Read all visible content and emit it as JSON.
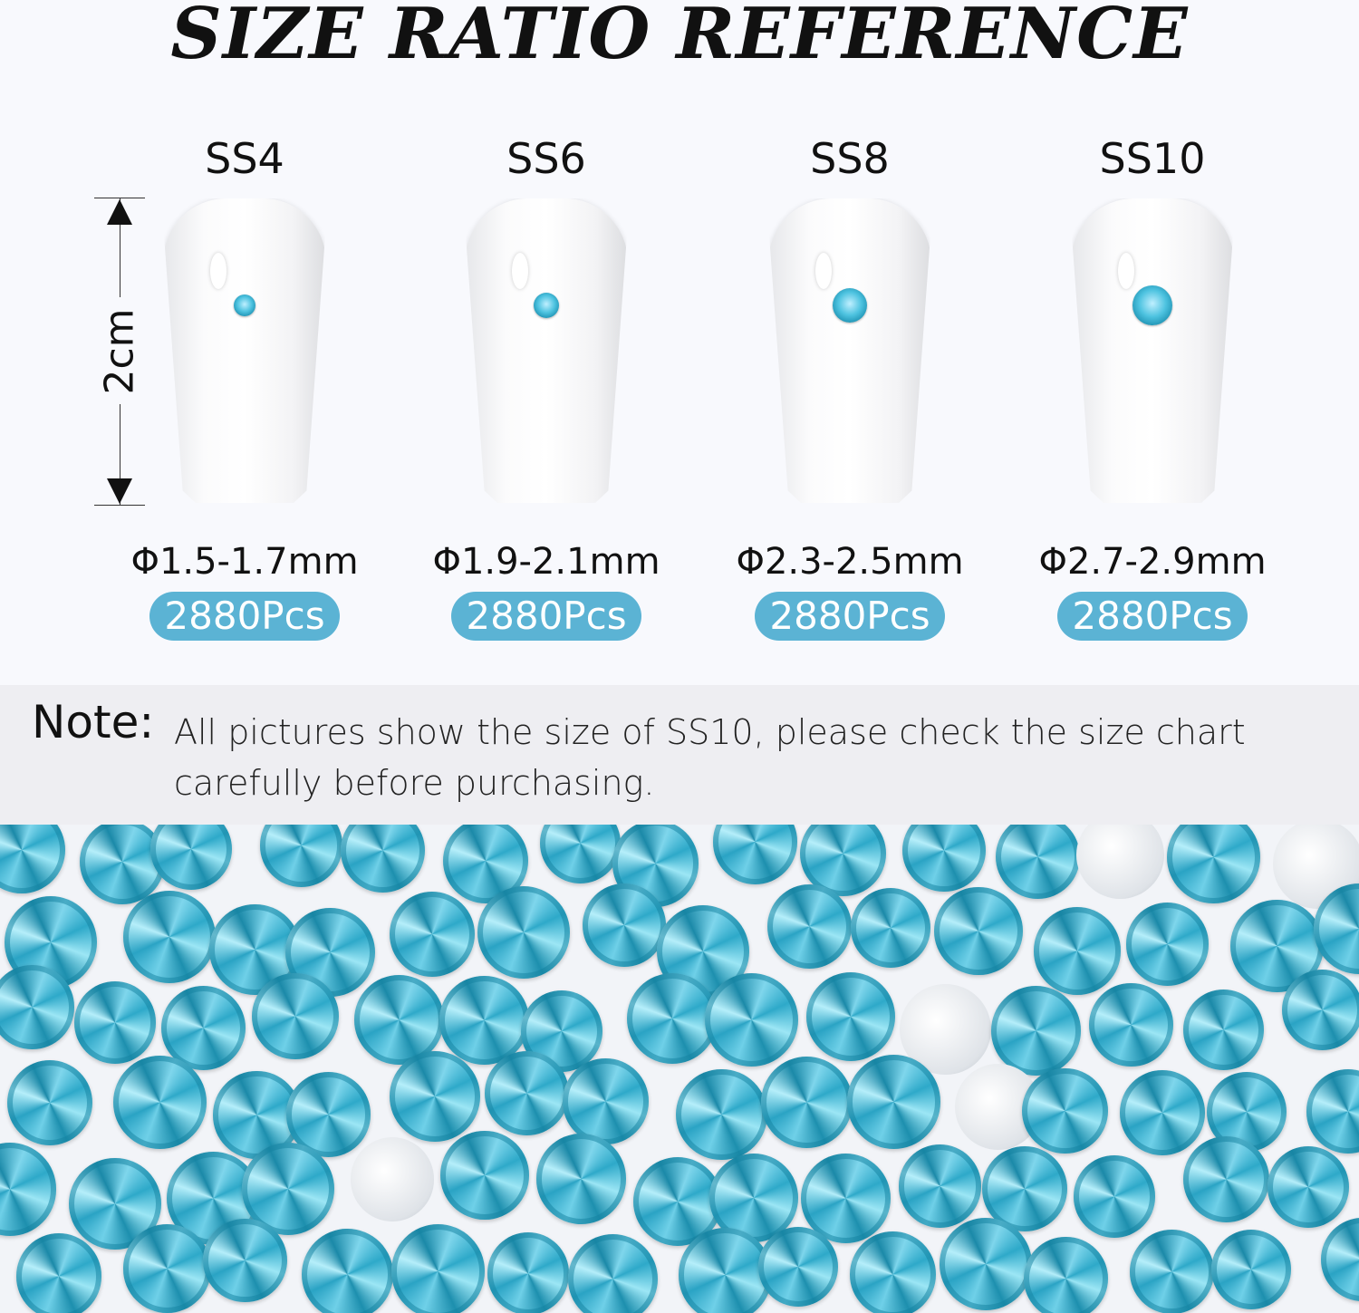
{
  "title": "SIZE RATIO REFERENCE",
  "ruler_label": "2cm",
  "sizes": [
    {
      "name": "SS4",
      "diameter": "Φ1.5-1.7mm",
      "count": "2880Pcs"
    },
    {
      "name": "SS6",
      "diameter": "Φ1.9-2.1mm",
      "count": "2880Pcs"
    },
    {
      "name": "SS8",
      "diameter": "Φ2.3-2.5mm",
      "count": "2880Pcs"
    },
    {
      "name": "SS10",
      "diameter": "Φ2.7-2.9mm",
      "count": "2880Pcs"
    }
  ],
  "note": {
    "label": "Note:",
    "text": "All pictures show the size of SS10, please check the size chart carefully before purchasing."
  },
  "colors": {
    "badge": "#5bb3d4",
    "gem": "#4ec3e0",
    "note_band": "#eeeef2"
  }
}
